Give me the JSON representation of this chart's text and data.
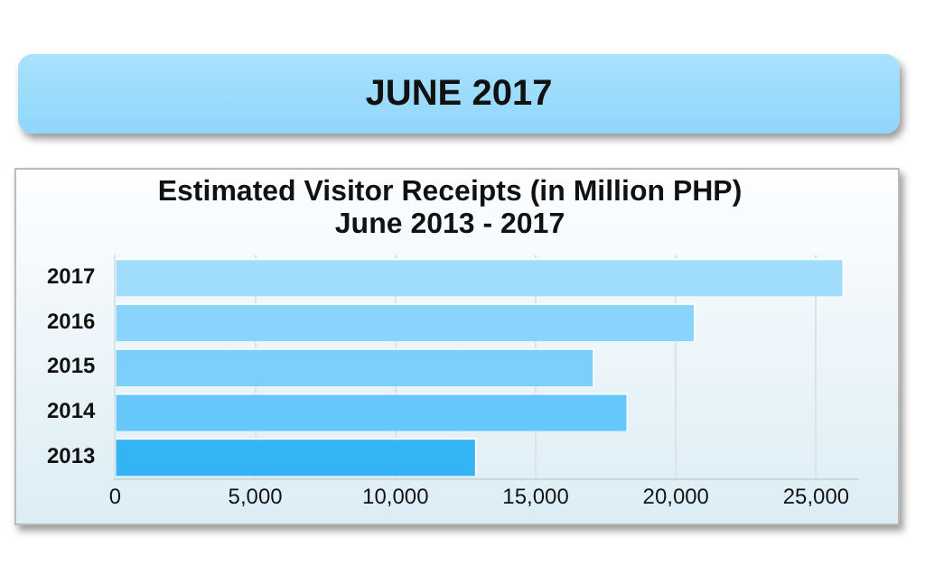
{
  "chart_data": {
    "type": "bar",
    "orientation": "horizontal",
    "title": "JUNE 2017",
    "subtitle": "Estimated Visitor Receipts (in Million PHP)\nJune 2013 - 2017",
    "categories": [
      "2017",
      "2016",
      "2015",
      "2014",
      "2013"
    ],
    "values": [
      26000,
      20700,
      17100,
      18300,
      12900
    ],
    "colors": [
      "#a0dcfc",
      "#88d4fc",
      "#7ccffa",
      "#66c8fa",
      "#33b5f5"
    ],
    "xlim": [
      0,
      26500
    ],
    "xticks": [
      {
        "value": 0,
        "label": "0"
      },
      {
        "value": 5000,
        "label": "5,000"
      },
      {
        "value": 10000,
        "label": "10,000"
      },
      {
        "value": 15000,
        "label": "15,000"
      },
      {
        "value": 20000,
        "label": "20,000"
      },
      {
        "value": 25000,
        "label": "25,000"
      }
    ],
    "grid": "x"
  }
}
